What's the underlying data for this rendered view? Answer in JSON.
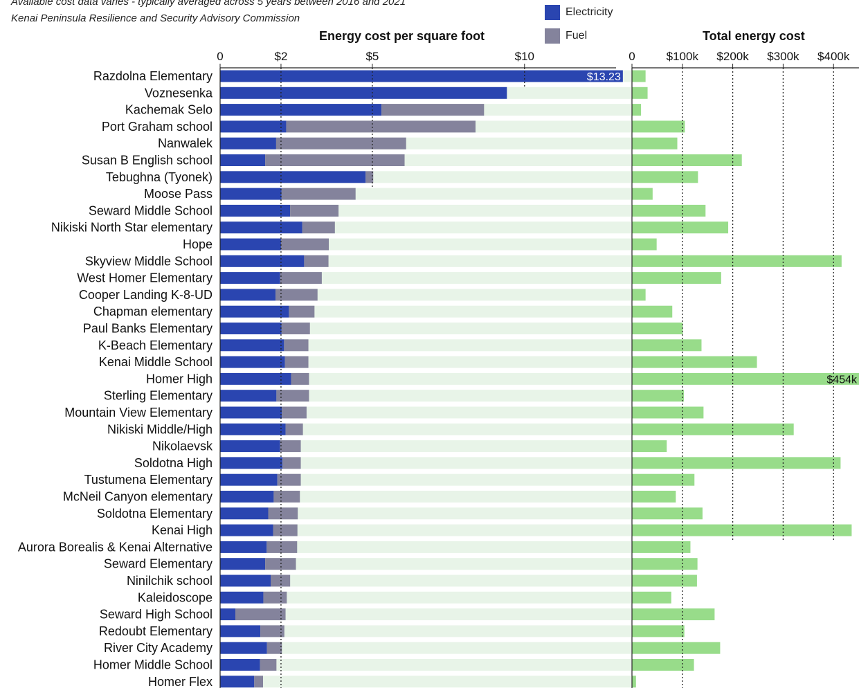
{
  "notes": {
    "line1": "Available cost data varies - typically averaged across 5 years between 2016 and 2021",
    "line2": "Kenai Peninsula Resilience and Security Advisory Commission"
  },
  "legend": {
    "electricity": {
      "label": "Electricity",
      "color": "#2a45b0"
    },
    "fuel": {
      "label": "Fuel",
      "color": "#84839c"
    }
  },
  "chart_data": [
    {
      "type": "bar",
      "orientation": "horizontal",
      "stacked": true,
      "title": "Energy cost per square foot",
      "xlim": [
        0,
        13.23
      ],
      "x_ticks": [
        0,
        2,
        5,
        10
      ],
      "x_tick_labels": [
        "0",
        "$2",
        "$5",
        "$10"
      ],
      "reference_lines": [
        2,
        5,
        10
      ],
      "background_color": "#e8f4e8",
      "categories": [
        "Razdolna Elementary",
        "Voznesenka",
        "Kachemak Selo",
        "Port Graham school",
        "Nanwalek",
        "Susan B English school",
        "Tebughna (Tyonek)",
        "Moose Pass",
        "Seward Middle School",
        "Nikiski North Star elementary",
        "Hope",
        "Skyview Middle School",
        "West Homer Elementary",
        "Cooper Landing K-8-UD",
        "Chapman elementary",
        "Paul Banks Elementary",
        "K-Beach Elementary",
        "Kenai Middle School",
        "Homer High",
        "Sterling Elementary",
        "Mountain View Elementary",
        "Nikiski Middle/High",
        "Nikolaevsk",
        "Soldotna High",
        "Tustumena Elementary",
        "McNeil Canyon elementary",
        "Soldotna Elementary",
        "Kenai High",
        "Aurora Borealis & Kenai Alternative",
        "Seward Elementary",
        "Ninilchik school",
        "Kaleidoscope",
        "Seward High School",
        "Redoubt Elementary",
        "River City Academy",
        "Homer Middle School",
        "Homer Flex"
      ],
      "series": [
        {
          "name": "Electricity",
          "color": "#2a45b0",
          "values": [
            13.23,
            9.42,
            5.3,
            2.17,
            1.84,
            1.48,
            4.78,
            2.02,
            2.3,
            2.7,
            2.0,
            2.76,
            1.97,
            1.82,
            2.26,
            2.02,
            2.1,
            2.13,
            2.33,
            1.85,
            2.03,
            2.15,
            1.97,
            2.05,
            1.88,
            1.76,
            1.58,
            1.74,
            1.53,
            1.48,
            1.66,
            1.42,
            0.5,
            1.32,
            1.54,
            1.31,
            1.12
          ]
        },
        {
          "name": "Fuel",
          "color": "#84839c",
          "values": [
            0,
            0,
            3.37,
            6.22,
            4.27,
            4.58,
            0.25,
            2.43,
            1.59,
            1.07,
            1.57,
            0.8,
            1.37,
            1.38,
            0.84,
            0.93,
            0.8,
            0.77,
            0.59,
            1.07,
            0.81,
            0.57,
            0.68,
            0.6,
            0.77,
            0.86,
            0.97,
            0.8,
            1.0,
            1.01,
            0.64,
            0.77,
            1.65,
            0.79,
            0.49,
            0.54,
            0.29
          ]
        }
      ],
      "data_labels": [
        {
          "category": "Razdolna Elementary",
          "text": "$13.23"
        }
      ]
    },
    {
      "type": "bar",
      "orientation": "horizontal",
      "title": "Total energy cost",
      "xlim": [
        0,
        454000
      ],
      "x_ticks": [
        0,
        100000,
        200000,
        300000,
        400000
      ],
      "x_tick_labels": [
        "0",
        "$100k",
        "$200k",
        "$300k",
        "$400k"
      ],
      "reference_lines": [
        100000,
        200000,
        300000,
        400000
      ],
      "series": [
        {
          "name": "",
          "color": "#98dc8a",
          "values": [
            27000,
            31000,
            18000,
            105000,
            90000,
            218000,
            131000,
            41000,
            146000,
            191000,
            49000,
            416000,
            177000,
            27000,
            80000,
            101000,
            138000,
            248000,
            454000,
            103000,
            142000,
            321000,
            69000,
            414000,
            124000,
            87000,
            140000,
            436000,
            116000,
            130000,
            129000,
            78000,
            164000,
            104000,
            175000,
            123000,
            8000
          ]
        }
      ],
      "data_labels": [
        {
          "category": "Homer High",
          "text": "$454k"
        }
      ]
    }
  ]
}
